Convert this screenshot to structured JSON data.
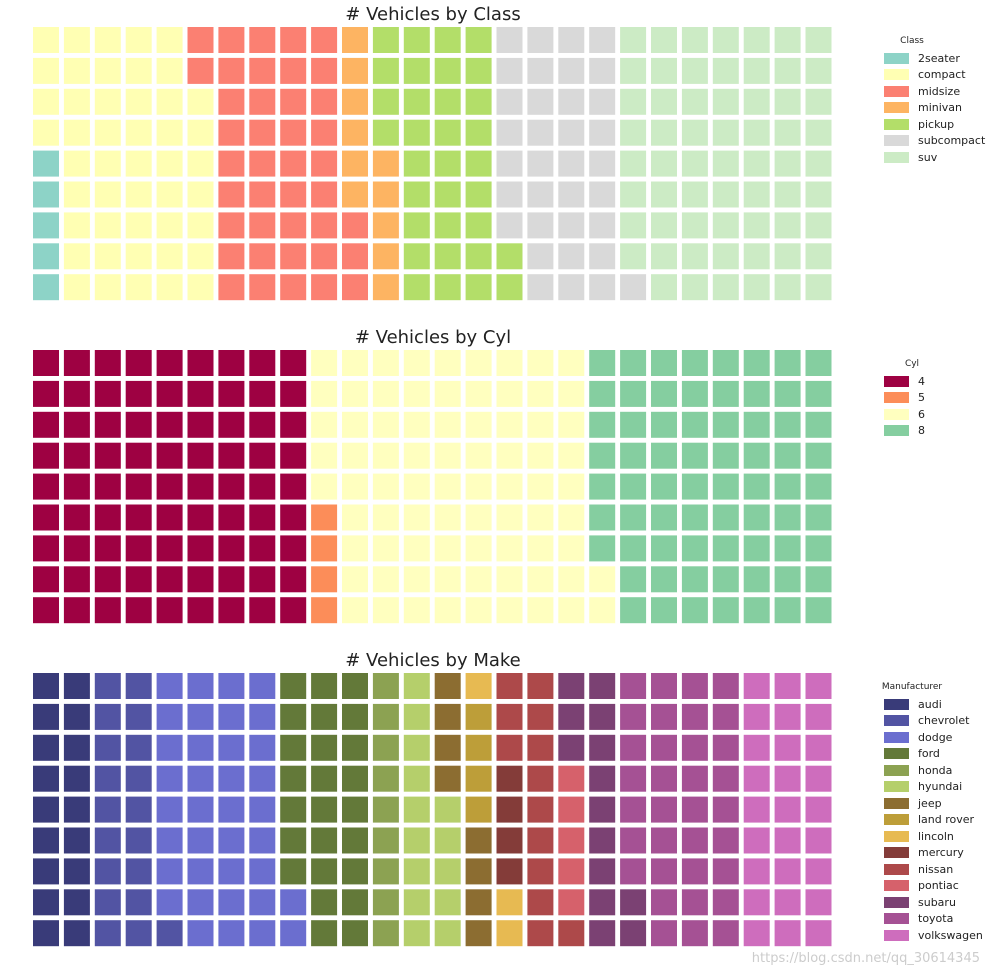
{
  "watermark": "https://blog.csdn.net/qq_30614345",
  "chart_data": [
    {
      "type": "waffle",
      "title": "# Vehicles by Class",
      "legend_title": "Class",
      "rows": 9,
      "cols": 26,
      "categories": [
        "2seater",
        "compact",
        "midsize",
        "minivan",
        "pickup",
        "subcompact",
        "suv"
      ],
      "values": [
        5,
        47,
        41,
        11,
        33,
        35,
        62
      ],
      "colors": [
        "#8dd3c7",
        "#ffffb3",
        "#fb8072",
        "#fdb462",
        "#b3de69",
        "#d9d9d9",
        "#ccebc5"
      ]
    },
    {
      "type": "waffle",
      "title": "# Vehicles by Cyl",
      "legend_title": "Cyl",
      "rows": 9,
      "cols": 26,
      "categories": [
        "4",
        "5",
        "6",
        "8"
      ],
      "values": [
        81,
        4,
        79,
        70
      ],
      "colors": [
        "#9e0142",
        "#fc8d59",
        "#ffffbf",
        "#85ceA0"
      ]
    },
    {
      "type": "waffle",
      "title": "# Vehicles by Make",
      "legend_title": "Manufacturer",
      "rows": 9,
      "cols": 26,
      "categories": [
        "audi",
        "chevrolet",
        "dodge",
        "ford",
        "honda",
        "hyundai",
        "jeep",
        "land rover",
        "lincoln",
        "mercury",
        "nissan",
        "pontiac",
        "subaru",
        "toyota",
        "volkswagen"
      ],
      "values": [
        18,
        19,
        37,
        25,
        9,
        14,
        8,
        4,
        3,
        4,
        13,
        5,
        14,
        34,
        27
      ],
      "colors": [
        "#393b79",
        "#5254a3",
        "#6b6ecf",
        "#637939",
        "#8ca252",
        "#b5cf6b",
        "#8c6d31",
        "#bd9e39",
        "#e7ba52",
        "#843c39",
        "#ad494a",
        "#d6616b",
        "#7b4173",
        "#a55194",
        "#ce6dbd"
      ]
    }
  ]
}
